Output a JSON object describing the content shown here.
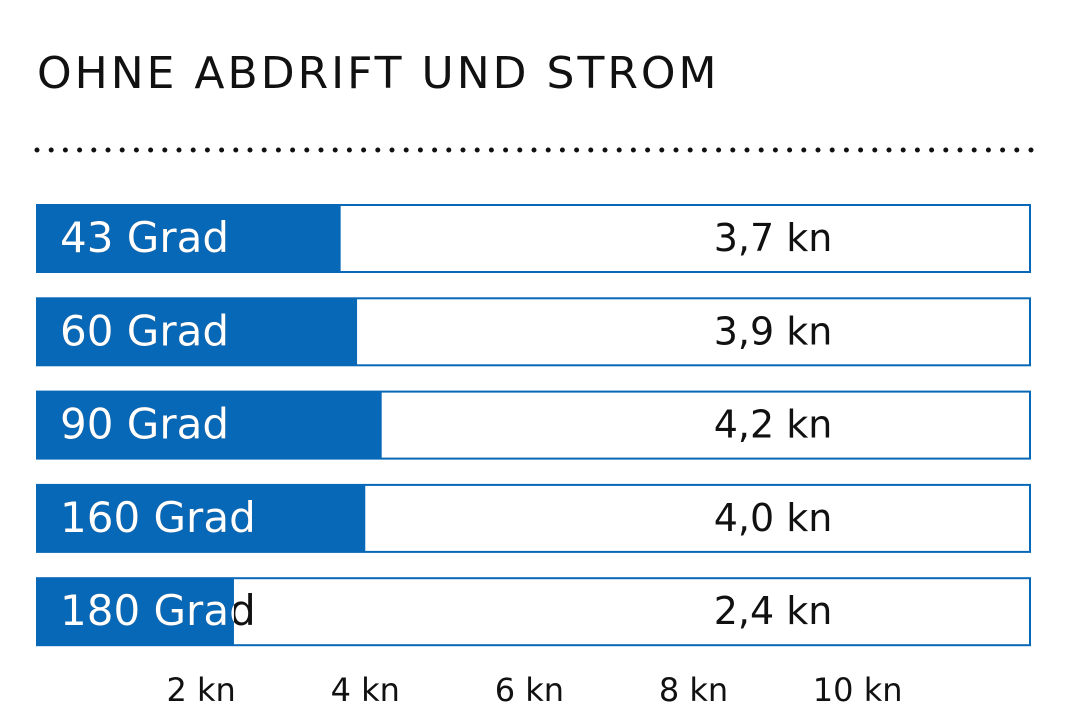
{
  "chart_data": {
    "type": "bar",
    "orientation": "horizontal",
    "title": "OHNE ABDRIFT UND STROM",
    "categories": [
      "43 Grad",
      "60 Grad",
      "90 Grad",
      "160 Grad",
      "180 Grad"
    ],
    "values": [
      3.7,
      3.9,
      4.2,
      4.0,
      2.4
    ],
    "value_labels": [
      "3,7 kn",
      "3,9 kn",
      "4,2 kn",
      "4,0 kn",
      "2,4 kn"
    ],
    "color": "#0868b8",
    "xlim": [
      0,
      12.1
    ],
    "xticks": [
      {
        "value": 2,
        "label": "2 kn"
      },
      {
        "value": 4,
        "label": "4 kn"
      },
      {
        "value": 6,
        "label": "6 kn"
      },
      {
        "value": 8,
        "label": "8 kn"
      },
      {
        "value": 10,
        "label": "10 kn"
      }
    ]
  }
}
